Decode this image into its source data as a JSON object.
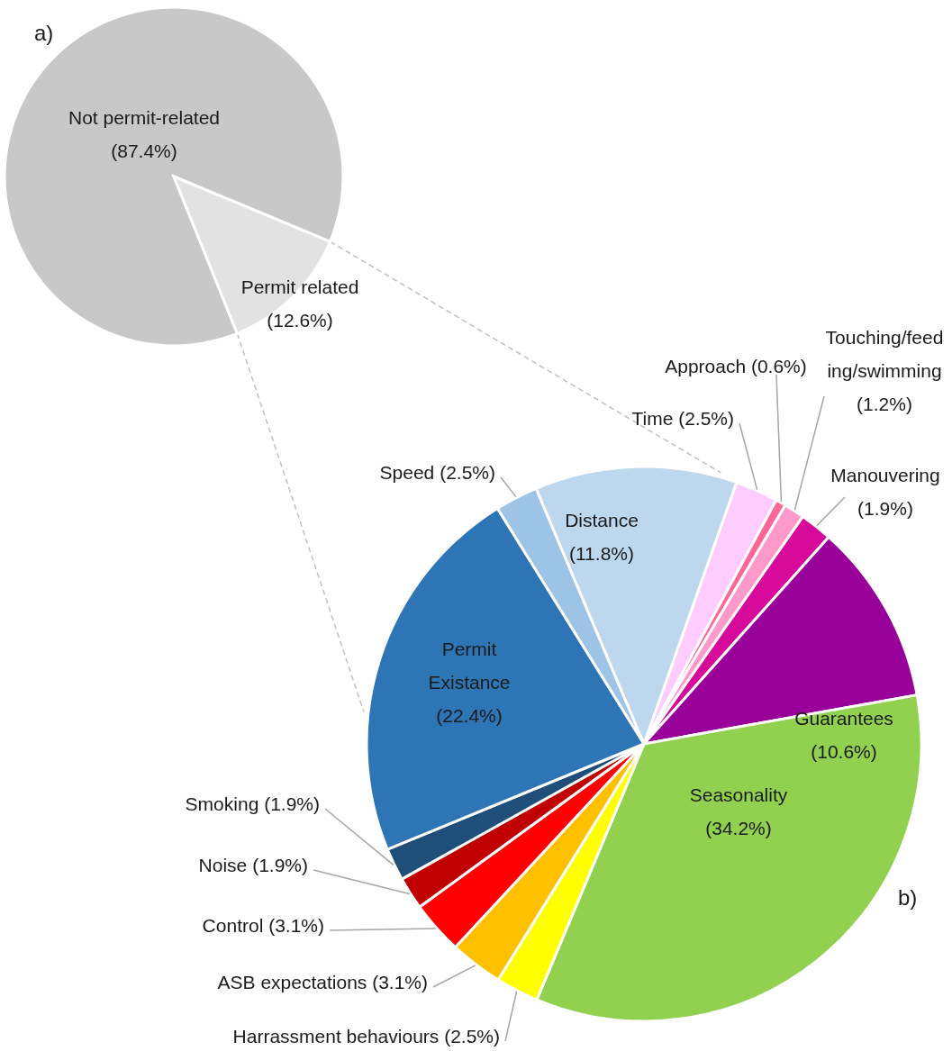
{
  "chart_data": [
    {
      "type": "pie",
      "categories": [
        "Not permit-related",
        "Permit related"
      ],
      "values": [
        87.4,
        12.6
      ],
      "value_labels": [
        "(87.4%)",
        "(12.6%)"
      ],
      "colors": [
        "#c8c8c8",
        "#e2e2e2"
      ],
      "annotations": [
        "a)"
      ]
    },
    {
      "type": "pie",
      "categories": [
        "Time",
        "Approach",
        "Touching/feeding/swimming",
        "Manouvering",
        "Guarantees",
        "Seasonality",
        "Harrassment behaviours",
        "ASB expectations",
        "Control",
        "Noise",
        "Smoking",
        "Permit Existance",
        "Speed",
        "Distance"
      ],
      "values": [
        2.5,
        0.6,
        1.2,
        1.9,
        10.6,
        34.2,
        2.5,
        3.1,
        3.1,
        1.9,
        1.9,
        22.4,
        2.5,
        11.8
      ],
      "value_labels": [
        "(2.5%)",
        "(0.6%)",
        "(1.2%)",
        "(1.9%)",
        "(10.6%)",
        "(34.2%)",
        "(2.5%)",
        "(3.1%)",
        "(3.1%)",
        "(1.9%)",
        "(1.9%)",
        "(22.4%)",
        "(2.5%)",
        "(11.8%)"
      ],
      "colors": [
        "#ffccff",
        "#ff6699",
        "#ff99cc",
        "#d6099a",
        "#990099",
        "#92d050",
        "#ffff00",
        "#ffc000",
        "#ff0000",
        "#c00000",
        "#1f4e79",
        "#2e75b6",
        "#9dc3e6",
        "#bdd7ee"
      ],
      "annotations": [
        "b)"
      ]
    }
  ]
}
